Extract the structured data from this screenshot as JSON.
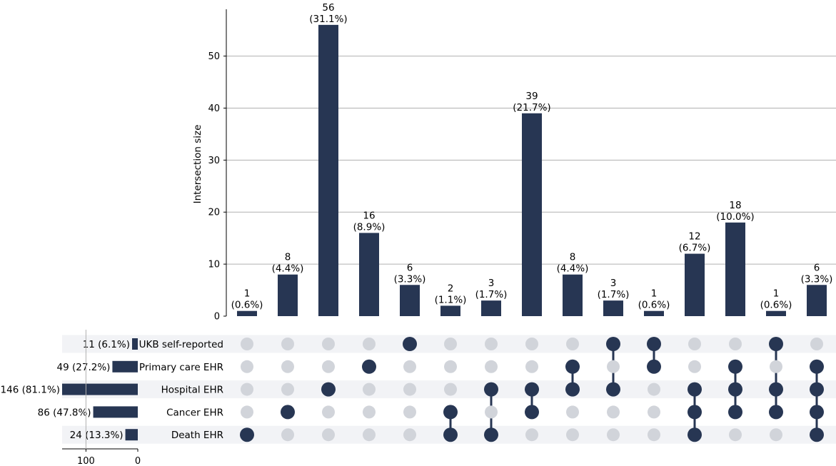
{
  "chart_data": {
    "type": "upset",
    "ylabel": "Intersection size",
    "ylim": [
      0,
      59
    ],
    "y_ticks": [
      0,
      10,
      20,
      30,
      40,
      50
    ],
    "sets": [
      {
        "name": "UKB self-reported",
        "size_label": "11 (6.1%)",
        "size": 11
      },
      {
        "name": "Primary care EHR",
        "size_label": "49 (27.2%)",
        "size": 49
      },
      {
        "name": "Hospital EHR",
        "size_label": "146 (81.1%)",
        "size": 146
      },
      {
        "name": "Cancer EHR",
        "size_label": "86 (47.8%)",
        "size": 86
      },
      {
        "name": "Death EHR",
        "size_label": "24 (13.3%)",
        "size": 24
      }
    ],
    "set_size_ticks": [
      100,
      0
    ],
    "set_size_max": 146,
    "intersections": [
      {
        "value": 1,
        "count_label": "1",
        "pct_label": "(0.6%)",
        "members": [
          4
        ]
      },
      {
        "value": 8,
        "count_label": "8",
        "pct_label": "(4.4%)",
        "members": [
          3
        ]
      },
      {
        "value": 56,
        "count_label": "56",
        "pct_label": "(31.1%)",
        "members": [
          2
        ]
      },
      {
        "value": 16,
        "count_label": "16",
        "pct_label": "(8.9%)",
        "members": [
          1
        ]
      },
      {
        "value": 6,
        "count_label": "6",
        "pct_label": "(3.3%)",
        "members": [
          0
        ]
      },
      {
        "value": 2,
        "count_label": "2",
        "pct_label": "(1.1%)",
        "members": [
          3,
          4
        ]
      },
      {
        "value": 3,
        "count_label": "3",
        "pct_label": "(1.7%)",
        "members": [
          2,
          4
        ]
      },
      {
        "value": 39,
        "count_label": "39",
        "pct_label": "(21.7%)",
        "members": [
          2,
          3
        ]
      },
      {
        "value": 8,
        "count_label": "8",
        "pct_label": "(4.4%)",
        "members": [
          1,
          2
        ]
      },
      {
        "value": 3,
        "count_label": "3",
        "pct_label": "(1.7%)",
        "members": [
          0,
          2
        ]
      },
      {
        "value": 1,
        "count_label": "1",
        "pct_label": "(0.6%)",
        "members": [
          0,
          1
        ]
      },
      {
        "value": 12,
        "count_label": "12",
        "pct_label": "(6.7%)",
        "members": [
          2,
          3,
          4
        ]
      },
      {
        "value": 18,
        "count_label": "18",
        "pct_label": "(10.0%)",
        "members": [
          1,
          2,
          3
        ]
      },
      {
        "value": 1,
        "count_label": "1",
        "pct_label": "(0.6%)",
        "members": [
          0,
          2,
          3
        ]
      },
      {
        "value": 6,
        "count_label": "6",
        "pct_label": "(3.3%)",
        "members": [
          1,
          2,
          3,
          4
        ]
      }
    ]
  },
  "colors": {
    "bar": "#273653",
    "dot_active": "#273653",
    "dot_inactive": "#d1d4da",
    "row_shade": "#f2f3f6",
    "grid": "#b0b0b0",
    "axis": "#000000"
  }
}
